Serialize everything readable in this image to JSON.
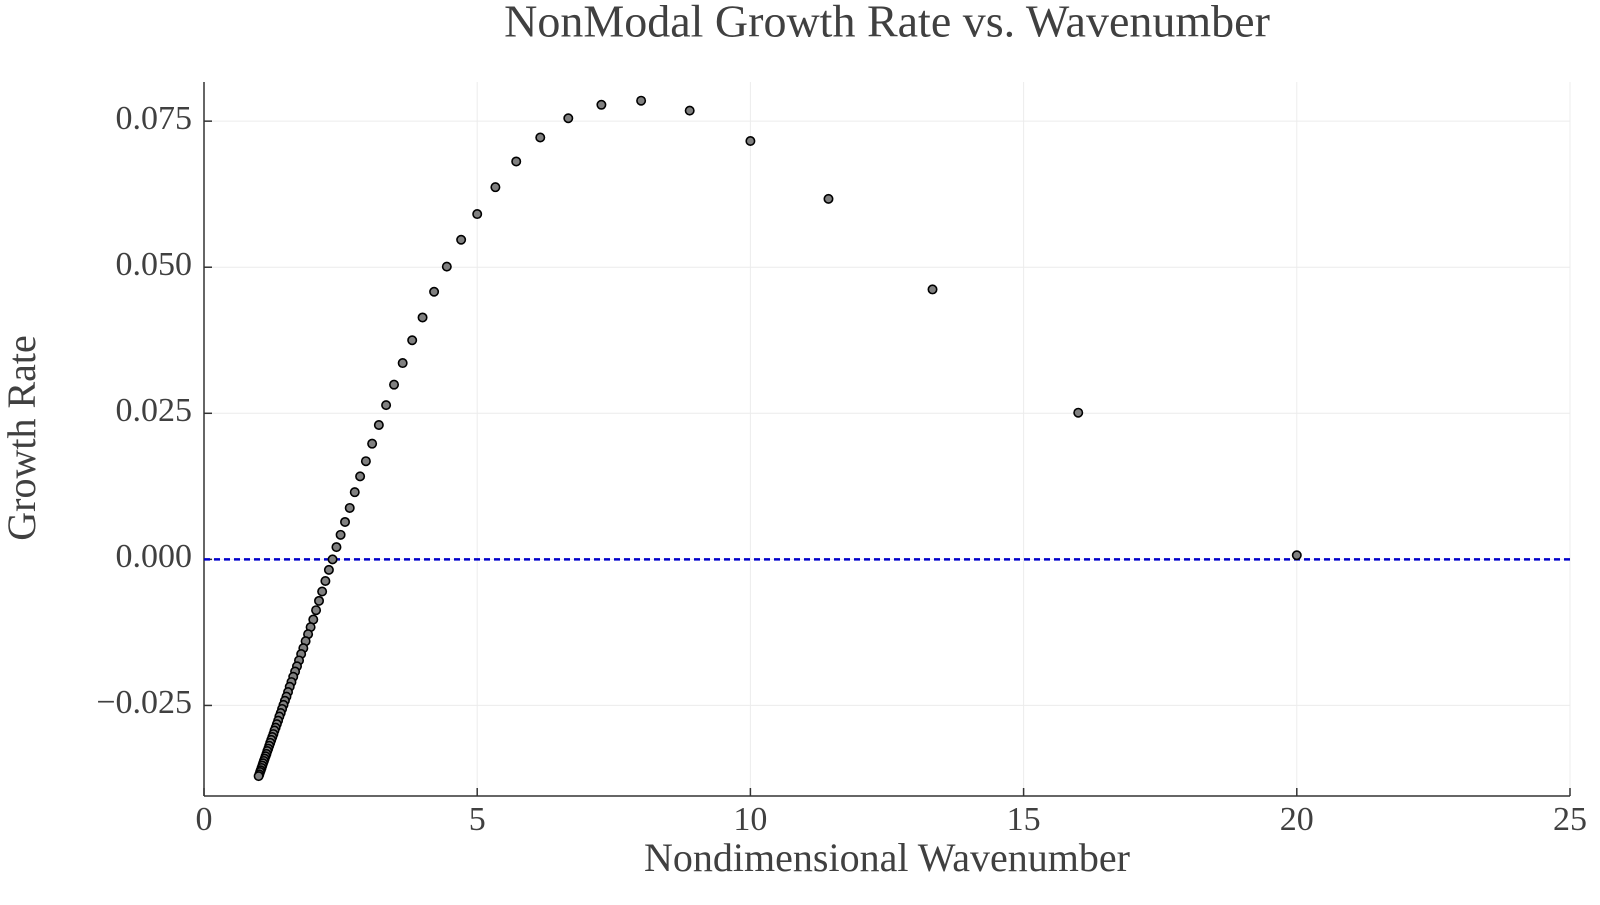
{
  "chart_data": {
    "type": "scatter",
    "title": "NonModal Growth Rate vs. Wavenumber",
    "xlabel": "Nondimensional Wavenumber",
    "ylabel": "Growth Rate",
    "color": "#808080",
    "hline": {
      "value": 0,
      "color": "#0000cc",
      "style": "dashed"
    },
    "grid": true,
    "xlim": [
      0,
      25
    ],
    "xticks": [
      0,
      5,
      10,
      15,
      20,
      25
    ],
    "ylim": [
      -0.0405,
      0.0817
    ],
    "yticks": [
      {
        "value": -0.025,
        "label": "−0.025"
      },
      {
        "value": 0,
        "label": "0.000"
      },
      {
        "value": 0.025,
        "label": "0.025"
      },
      {
        "value": 0.05,
        "label": "0.050"
      },
      {
        "value": 0.075,
        "label": "0.075"
      }
    ],
    "x": [
      20,
      16,
      13.333,
      11.429,
      10,
      8.889,
      8,
      7.273,
      6.667,
      6.154,
      5.714,
      5.333,
      5,
      4.706,
      4.444,
      4.211,
      4,
      3.81,
      3.636,
      3.478,
      3.333,
      3.2,
      3.077,
      2.963,
      2.857,
      2.759,
      2.667,
      2.581,
      2.5,
      2.424,
      2.353,
      2.286,
      2.222,
      2.162,
      2.105,
      2.051,
      2,
      1.951,
      1.905,
      1.86,
      1.818,
      1.778,
      1.739,
      1.702,
      1.667,
      1.633,
      1.6,
      1.569,
      1.538,
      1.509,
      1.481,
      1.455,
      1.429,
      1.404,
      1.379,
      1.356,
      1.333,
      1.311,
      1.29,
      1.27,
      1.25,
      1.231,
      1.212,
      1.194,
      1.176,
      1.159,
      1.143,
      1.127,
      1.111,
      1.096,
      1.081,
      1.067,
      1.053,
      1.039,
      1.026,
      1.013,
      1
    ],
    "values": [
      0.0007,
      0.0251,
      0.0462,
      0.0617,
      0.0716,
      0.0768,
      0.0785,
      0.0778,
      0.0755,
      0.0722,
      0.0681,
      0.0637,
      0.0591,
      0.0547,
      0.0501,
      0.0458,
      0.0414,
      0.0375,
      0.0336,
      0.0299,
      0.0264,
      0.023,
      0.0198,
      0.0168,
      0.0142,
      0.0115,
      0.0088,
      0.0064,
      0.0042,
      0.0021,
      0.0,
      -0.0018,
      -0.0037,
      -0.0055,
      -0.0071,
      -0.0087,
      -0.0103,
      -0.0116,
      -0.0128,
      -0.014,
      -0.0152,
      -0.0162,
      -0.0173,
      -0.0183,
      -0.0192,
      -0.0201,
      -0.021,
      -0.0218,
      -0.0227,
      -0.0235,
      -0.0242,
      -0.0249,
      -0.0256,
      -0.0263,
      -0.0269,
      -0.0276,
      -0.0282,
      -0.0288,
      -0.0293,
      -0.0299,
      -0.0304,
      -0.0309,
      -0.0314,
      -0.0319,
      -0.0324,
      -0.0328,
      -0.0333,
      -0.0337,
      -0.0341,
      -0.0345,
      -0.0349,
      -0.0353,
      -0.0357,
      -0.0361,
      -0.0364,
      -0.0368,
      -0.0371
    ]
  }
}
